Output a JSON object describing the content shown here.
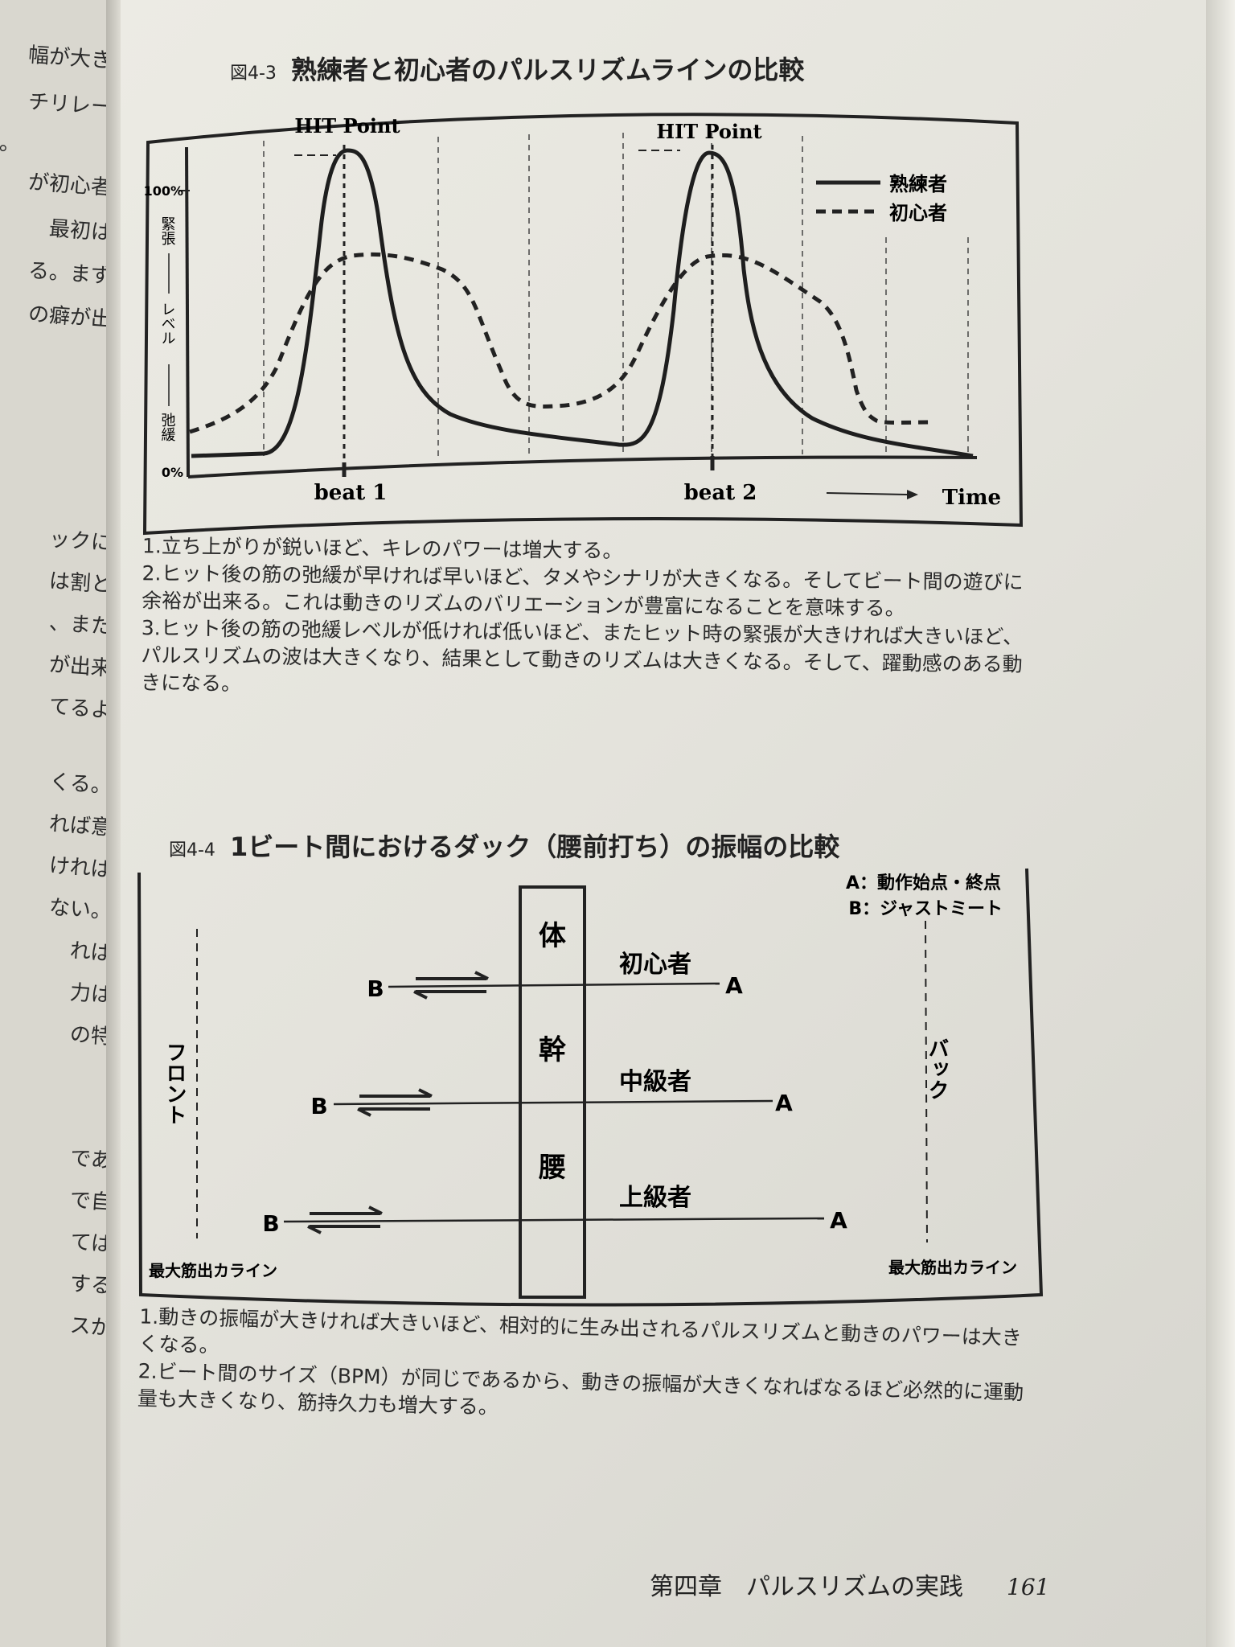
{
  "left_page": {
    "fragments": [
      "幅が大き",
      "チリレー",
      "。",
      "が初心者",
      "最初は",
      "る。まず",
      "の癖が出",
      "ックに",
      "は割と",
      "、また",
      "が出来",
      "てるよ",
      "くる。",
      "れば意",
      "ければ",
      "ない。",
      "れば",
      "力は",
      "の特",
      "であ",
      "で自",
      "ては",
      "する",
      "スが"
    ]
  },
  "figure_4_3": {
    "number": "図4-3",
    "title": "熟練者と初心者のパルスリズムラインの比較",
    "hit_point_label": "HIT Point",
    "y_axis": {
      "top": "100%",
      "bottom": "0%",
      "upper_label": "緊張",
      "middle_label": "レベル",
      "lower_label": "弛緩"
    },
    "x_labels": {
      "beat1": "beat 1",
      "beat2": "beat 2",
      "time": "Time"
    },
    "legend": [
      {
        "label": "熟練者",
        "style": "solid"
      },
      {
        "label": "初心者",
        "style": "dashed"
      }
    ],
    "notes": [
      "1.立ち上がりが鋭いほど、キレのパワーは増大する。",
      "2.ヒット後の筋の弛緩が早ければ早いほど、タメやシナリが大きくなる。そしてビート間の遊びに余裕が出来る。これは動きのリズムのバリエーションが豊富になることを意味する。",
      "3.ヒット後の筋の弛緩レベルが低ければ低いほど、またヒット時の緊張が大きければ大きいほど、パルスリズムの波は大きくなり、結果として動きのリズムは大きくなる。そして、躍動感のある動きになる。"
    ]
  },
  "figure_4_4": {
    "number": "図4-4",
    "title": "1ビート間におけるダック（腰前打ち）の振幅の比較",
    "legend": [
      "A：動作始点・終点",
      "B：ジャストミート"
    ],
    "front_label": "フロント",
    "back_label": "バック",
    "trunk_chars": [
      "体",
      "幹",
      "腰"
    ],
    "max_line_label": "最大筋出カライン",
    "rows": [
      {
        "label": "初心者",
        "a": "A",
        "b": "B"
      },
      {
        "label": "中級者",
        "a": "A",
        "b": "B"
      },
      {
        "label": "上級者",
        "a": "A",
        "b": "B"
      }
    ],
    "notes": [
      "1.動きの振幅が大きければ大きいほど、相対的に生み出されるパルスリズムと動きのパワーは大きくなる。",
      "2.ビート間のサイズ（BPM）が同じであるから、動きの振幅が大きくなればなるほど必然的に運動量も大きくなり、筋持久力も増大する。"
    ]
  },
  "footer": {
    "chapter": "第四章　パルスリズムの実践",
    "page_number": "161"
  },
  "colors": {
    "paper": "#e8e7e0",
    "ink": "#222222"
  }
}
